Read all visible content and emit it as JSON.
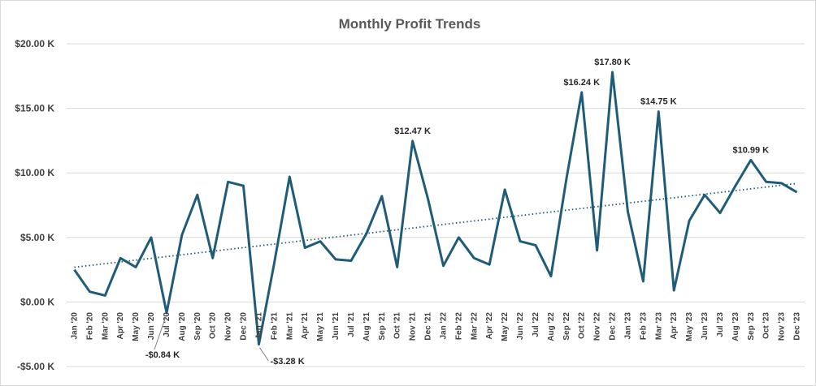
{
  "chart_data": {
    "type": "line",
    "title": "Monthly Profit Trends",
    "xlabel": "",
    "ylabel": "",
    "ylim": [
      -5,
      20
    ],
    "y_tick_values": [
      -5,
      0,
      5,
      10,
      15,
      20
    ],
    "y_tick_labels": [
      "-$5.00 K",
      "$0.00 K",
      "$5.00 K",
      "$10.00 K",
      "$15.00 K",
      "$20.00 K"
    ],
    "grid": true,
    "legend": "none",
    "trendline": "linear",
    "series_color": "#1f5c78",
    "categories": [
      "Jan '20",
      "Feb '20",
      "Mar '20",
      "Apr '20",
      "May '20",
      "Jun '20",
      "Jul '20",
      "Aug '20",
      "Sep '20",
      "Oct '20",
      "Nov '20",
      "Dec '20",
      "Jan '21",
      "Feb '21",
      "Mar '21",
      "Apr '21",
      "May '21",
      "Jun '21",
      "Jul '21",
      "Aug '21",
      "Sep '21",
      "Oct '21",
      "Nov '21",
      "Dec '21",
      "Jan '22",
      "Feb '22",
      "Mar '22",
      "Apr '22",
      "May '22",
      "Jun '22",
      "Jul '22",
      "Aug '22",
      "Sep '22",
      "Oct '22",
      "Nov '22",
      "Dec '22",
      "Jan '23",
      "Feb '23",
      "Mar '23",
      "Apr '23",
      "May '23",
      "Jun '23",
      "Jul '23",
      "Aug '23",
      "Sep '23",
      "Oct '23",
      "Nov '23",
      "Dec '23"
    ],
    "values": [
      2.5,
      0.8,
      0.5,
      3.4,
      2.7,
      5.0,
      -0.84,
      5.2,
      8.3,
      3.4,
      9.3,
      9.0,
      -3.28,
      3.0,
      9.7,
      4.2,
      4.7,
      3.3,
      3.2,
      5.3,
      8.2,
      2.7,
      12.47,
      8.0,
      2.8,
      5.0,
      3.4,
      2.9,
      8.7,
      4.7,
      4.4,
      2.0,
      9.5,
      16.24,
      4.0,
      17.8,
      7.0,
      1.6,
      14.75,
      0.9,
      6.3,
      8.3,
      6.9,
      9.0,
      10.99,
      9.3,
      9.2,
      8.5
    ],
    "data_labels": [
      {
        "index": 6,
        "text": "-$0.84 K"
      },
      {
        "index": 12,
        "text": "-$3.28 K"
      },
      {
        "index": 22,
        "text": "$12.47 K"
      },
      {
        "index": 33,
        "text": "$16.24 K"
      },
      {
        "index": 35,
        "text": "$17.80 K"
      },
      {
        "index": 38,
        "text": "$14.75 K"
      },
      {
        "index": 44,
        "text": "$10.99 K"
      }
    ]
  }
}
